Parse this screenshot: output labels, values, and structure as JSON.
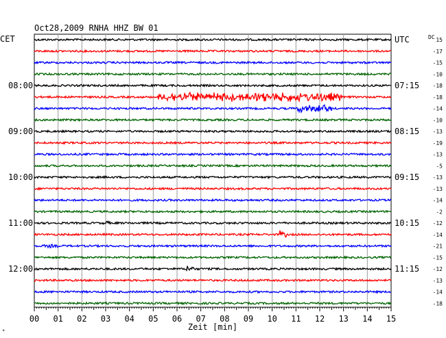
{
  "chart_data": {
    "type": "line",
    "title": "Oct28,2009   RNHA HHZ BW 01",
    "left_header": "CET",
    "right_header": "UTC",
    "dc_header": "DC",
    "xlabel": "Zeit [min]",
    "x_ticks": [
      "00",
      "01",
      "02",
      "03",
      "04",
      "05",
      "06",
      "07",
      "08",
      "09",
      "10",
      "11",
      "12",
      "13",
      "14",
      "15"
    ],
    "xlim": [
      0,
      15
    ],
    "trace_colors": [
      "#000000",
      "#ff0000",
      "#0000ff",
      "#006400"
    ],
    "trace_count": 24,
    "left_time_labels": [
      {
        "row": 4,
        "label": "08:00"
      },
      {
        "row": 8,
        "label": "09:00"
      },
      {
        "row": 12,
        "label": "10:00"
      },
      {
        "row": 16,
        "label": "11:00"
      },
      {
        "row": 20,
        "label": "12:00"
      }
    ],
    "right_time_labels": [
      {
        "row": 0,
        "label": "UTC"
      },
      {
        "row": 4,
        "label": "07:15"
      },
      {
        "row": 8,
        "label": "08:15"
      },
      {
        "row": 12,
        "label": "09:15"
      },
      {
        "row": 16,
        "label": "10:15"
      },
      {
        "row": 20,
        "label": "11:15"
      }
    ],
    "dc_offsets": [
      15,
      -17,
      -15,
      -10,
      -18,
      -18,
      -14,
      -10,
      -13,
      -19,
      -13,
      -5,
      -13,
      -13,
      -14,
      -2,
      -12,
      -14,
      -21,
      -15,
      -12,
      -13,
      -14,
      -18
    ],
    "events": [
      {
        "row": 5,
        "start_min": 5.2,
        "end_min": 12.9,
        "amplitude": "large"
      },
      {
        "row": 6,
        "start_min": 11.0,
        "end_min": 12.5,
        "amplitude": "medium"
      },
      {
        "row": 17,
        "start_min": 10.3,
        "end_min": 10.6,
        "amplitude": "medium"
      },
      {
        "row": 20,
        "start_min": 6.4,
        "end_min": 6.7,
        "amplitude": "medium"
      },
      {
        "row": 16,
        "start_min": 2.9,
        "end_min": 3.2,
        "amplitude": "small"
      },
      {
        "row": 18,
        "start_min": 0.4,
        "end_min": 1.0,
        "amplitude": "small"
      }
    ]
  }
}
